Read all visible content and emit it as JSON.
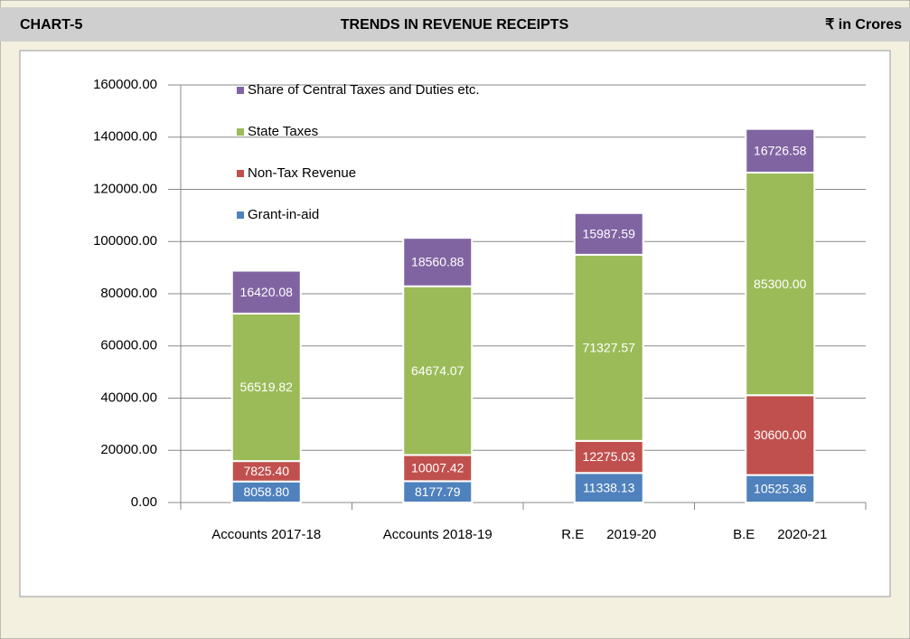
{
  "header": {
    "label": "CHART-5",
    "unit": "₹ in Crores"
  },
  "chart_data": {
    "type": "stacked_bar",
    "title": "TRENDS IN REVENUE RECEIPTS",
    "categories": [
      "Accounts 2017-18",
      "Accounts 2018-19",
      "R.E      2019-20",
      "B.E      2020-21"
    ],
    "series": [
      {
        "name": "Grant-in-aid",
        "color": "#4f81bd",
        "values": [
          8058.8,
          8177.79,
          11338.13,
          10525.36
        ],
        "value_labels": [
          "8058.80",
          "8177.79",
          "11338.13",
          "10525.36"
        ]
      },
      {
        "name": "Non-Tax Revenue",
        "color": "#c0504d",
        "values": [
          7825.4,
          10007.42,
          12275.03,
          30600.0
        ],
        "value_labels": [
          "7825.40",
          "10007.42",
          "12275.03",
          "30600.00"
        ]
      },
      {
        "name": "State Taxes",
        "color": "#9bbb59",
        "values": [
          56519.82,
          64674.07,
          71327.57,
          85300.0
        ],
        "value_labels": [
          "56519.82",
          "64674.07",
          "71327.57",
          "85300.00"
        ]
      },
      {
        "name": "Share of Central Taxes and Duties etc.",
        "color": "#8064a2",
        "values": [
          16420.08,
          18560.88,
          15987.59,
          16726.58
        ],
        "value_labels": [
          "16420.08",
          "18560.88",
          "15987.59",
          "16726.58"
        ]
      }
    ],
    "ylim": [
      0,
      160000
    ],
    "yticks": [
      {
        "value": 0,
        "label": "0.00"
      },
      {
        "value": 20000,
        "label": "20000.00"
      },
      {
        "value": 40000,
        "label": "40000.00"
      },
      {
        "value": 60000,
        "label": "60000.00"
      },
      {
        "value": 80000,
        "label": "80000.00"
      },
      {
        "value": 100000,
        "label": "100000.00"
      },
      {
        "value": 120000,
        "label": "120000.00"
      },
      {
        "value": 140000,
        "label": "140000.00"
      },
      {
        "value": 160000,
        "label": "160000.00"
      }
    ],
    "grid": true,
    "legend": "upper-left"
  }
}
